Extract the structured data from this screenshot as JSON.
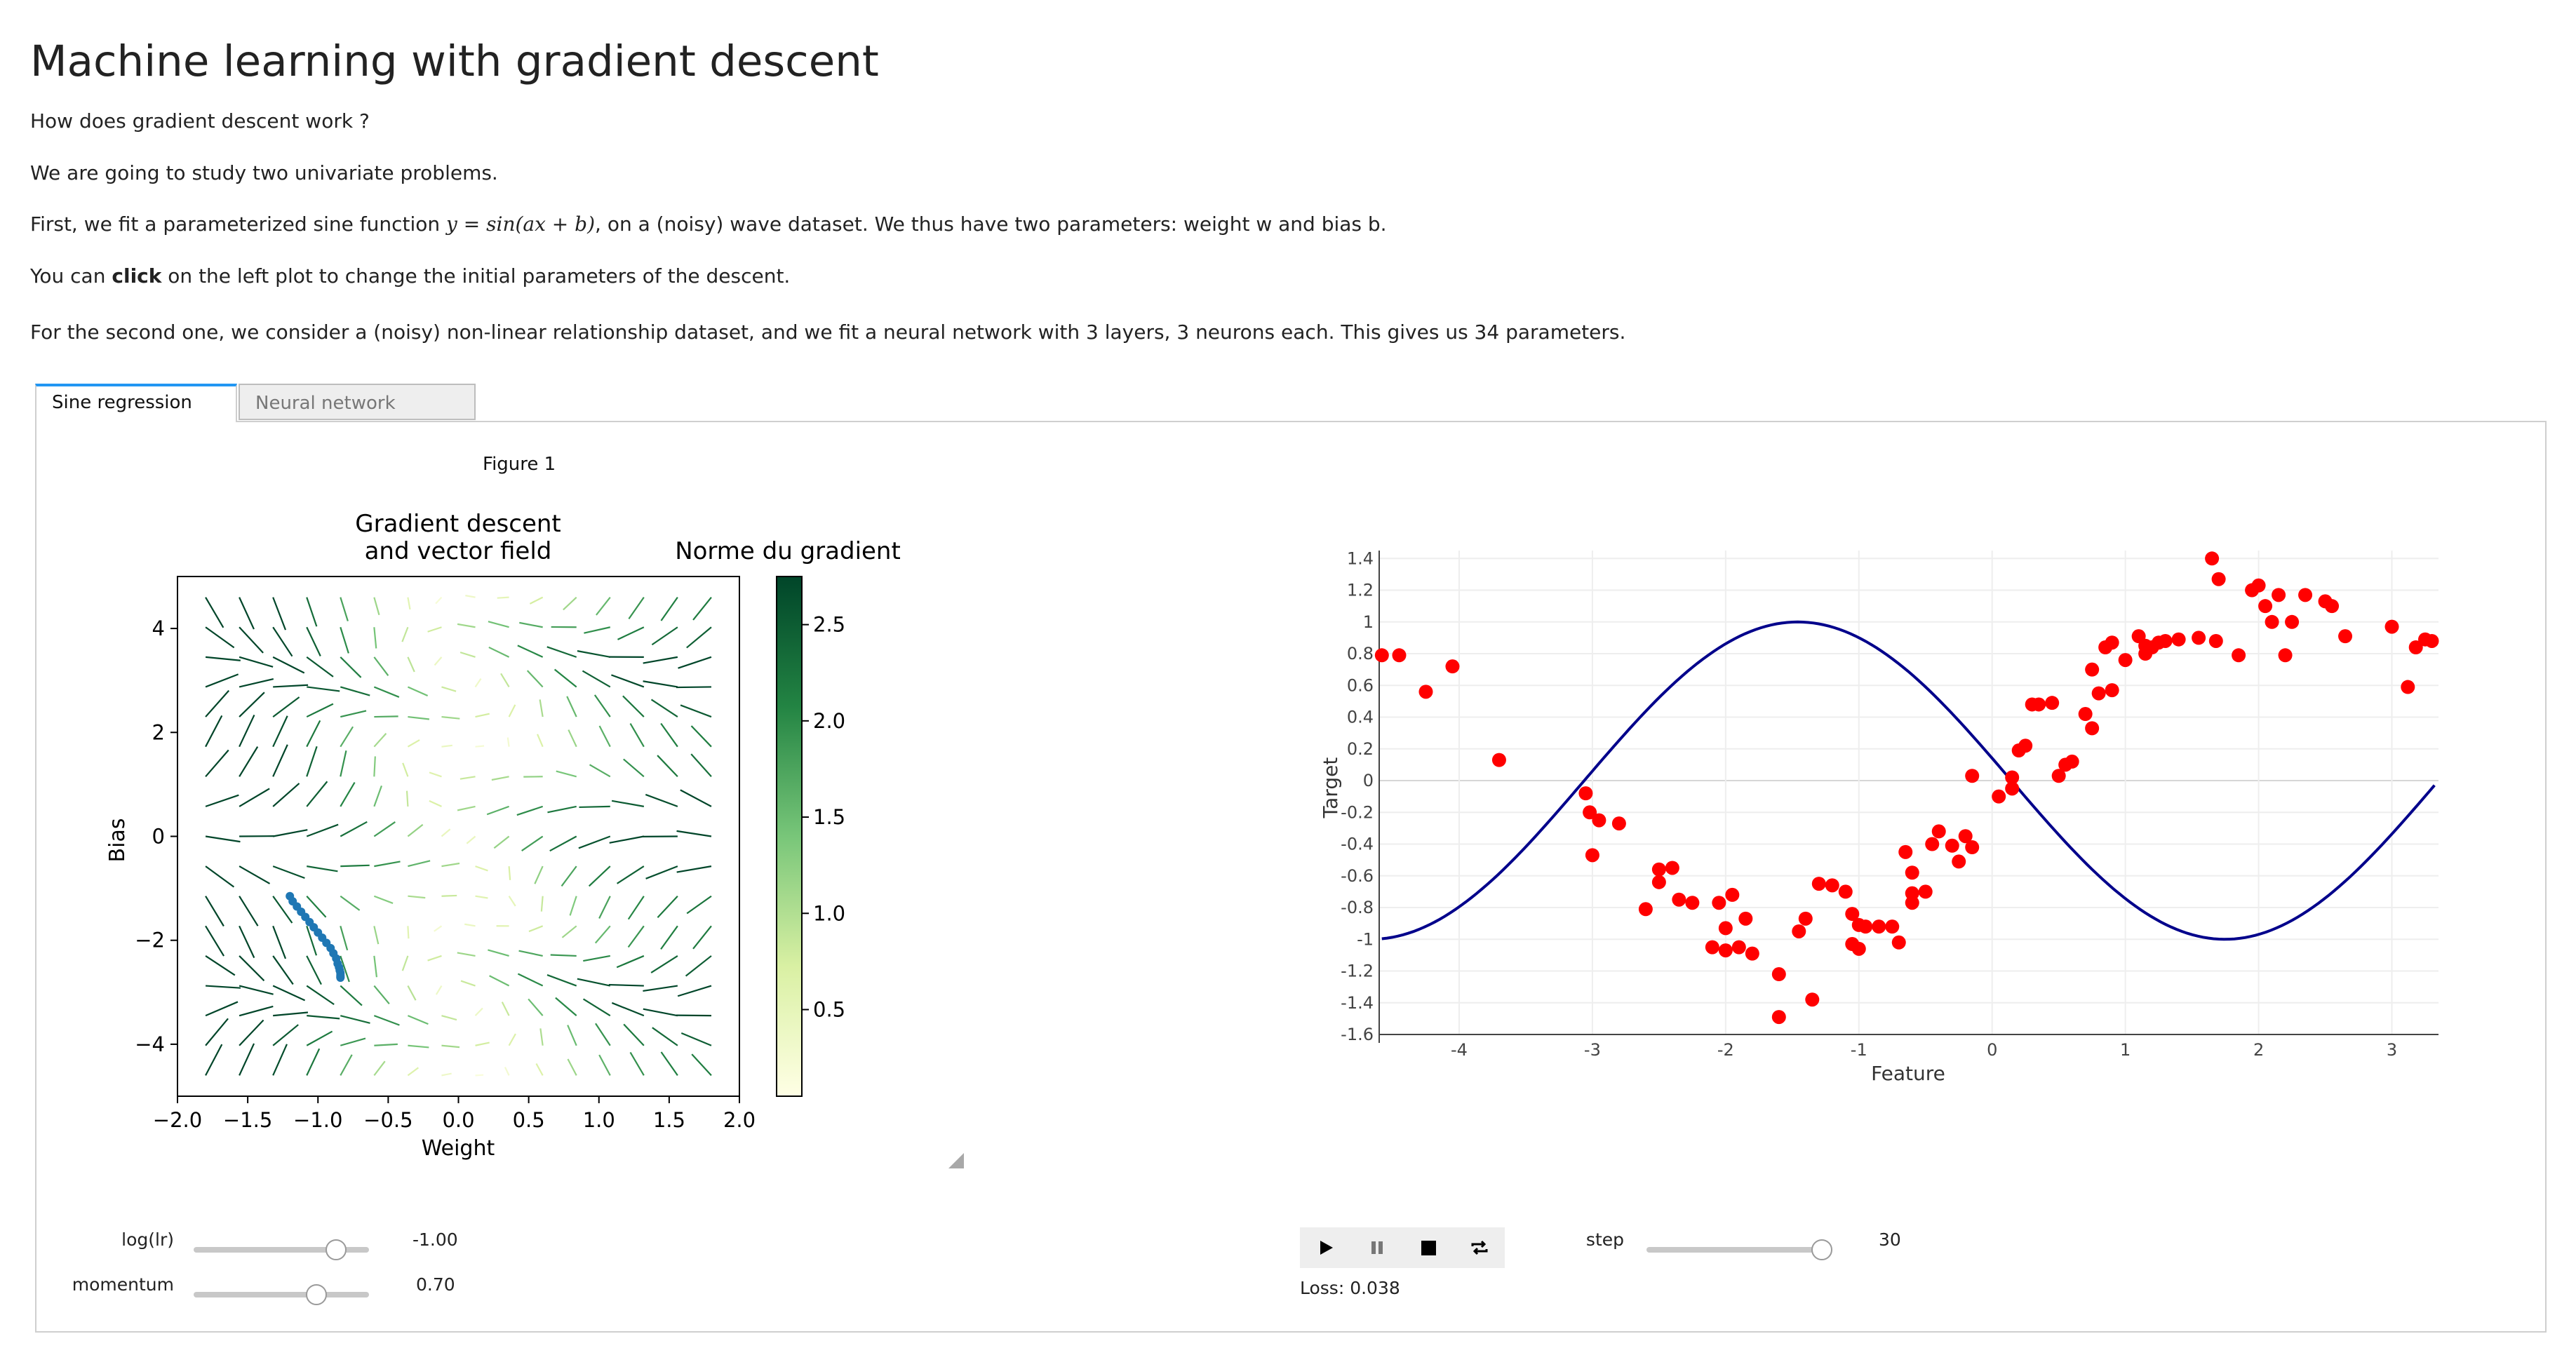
{
  "header": {
    "title": "Machine learning with gradient descent",
    "intro": "How does gradient descent work ?",
    "p2": "We are going to study two univariate problems.",
    "p3_before": "First, we fit a parameterized sine function ",
    "p3_math": "y = sin(ax + b)",
    "p3_after": ", on a (noisy) wave dataset. We thus have two parameters: weight w and bias b.",
    "p4_before": "You can ",
    "p4_bold": "click",
    "p4_after": " on the left plot to change the initial parameters of the descent.",
    "p5": "For the second one, we consider a (noisy) non-linear relationship dataset, and we fit a neural network with 3 layers, 3 neurons each. This gives us 34 parameters."
  },
  "tabs": [
    {
      "label": "Sine regression",
      "active": true
    },
    {
      "label": "Neural network",
      "active": false
    }
  ],
  "figure": {
    "label": "Figure 1",
    "left_title_line1": "Gradient descent",
    "left_title_line2": "and vector field",
    "xlabel": "Weight",
    "ylabel": "Bias",
    "xticks": [
      "−2.0",
      "−1.5",
      "−1.0",
      "−0.5",
      "0.0",
      "0.5",
      "1.0",
      "1.5",
      "2.0"
    ],
    "yticks": [
      "4",
      "2",
      "0",
      "−2",
      "−4"
    ],
    "colorbar_title": "Norme du gradient",
    "colorbar_ticks": [
      "2.5",
      "2.0",
      "1.5",
      "1.0",
      "0.5"
    ]
  },
  "controls": {
    "lr_label": "log(lr)",
    "lr_value": "-1.00",
    "lr_fraction": 0.81,
    "momentum_label": "momentum",
    "momentum_value": "0.70",
    "momentum_fraction": 0.7,
    "step_label": "step",
    "step_value": "30",
    "step_fraction": 1.0,
    "loss_text": "Loss: 0.038",
    "player_buttons": [
      "play-icon",
      "pause-icon",
      "stop-icon",
      "repeat-icon"
    ]
  },
  "colors": {
    "accent_tab": "#2196f3",
    "descent_path": "#1f77b4",
    "scatter": "#ff0000",
    "fit_line": "#00008b"
  },
  "chart_data": [
    {
      "type": "scatter",
      "title": "Gradient descent and vector field",
      "xlabel": "Weight",
      "ylabel": "Bias",
      "xlim": [
        -2.0,
        2.0
      ],
      "ylim": [
        -5.0,
        5.0
      ],
      "descent_path": {
        "x": [
          -1.2,
          -1.18,
          -1.15,
          -1.12,
          -1.09,
          -1.06,
          -1.03,
          -1.0,
          -0.97,
          -0.94,
          -0.91,
          -0.89,
          -0.87,
          -0.86,
          -0.85,
          -0.845,
          -0.84,
          -0.84,
          -0.84,
          -0.84
        ],
        "y": [
          -1.15,
          -1.25,
          -1.35,
          -1.45,
          -1.55,
          -1.65,
          -1.75,
          -1.85,
          -1.95,
          -2.05,
          -2.15,
          -2.25,
          -2.35,
          -2.45,
          -2.52,
          -2.58,
          -2.63,
          -2.67,
          -2.7,
          -2.72
        ]
      },
      "colorbar": {
        "title": "Norme du gradient",
        "min": 0.05,
        "max": 2.75,
        "colormap": "YlGn"
      }
    },
    {
      "type": "scatter",
      "xlabel": "Feature",
      "ylabel": "Target",
      "xlim": [
        -4.6,
        3.35
      ],
      "ylim": [
        -1.6,
        1.45
      ],
      "xticks": [
        "-4",
        "-3",
        "-2",
        "-1",
        "0",
        "1",
        "2",
        "3"
      ],
      "yticks": [
        "1.4",
        "1.2",
        "1",
        "0.8",
        "0.6",
        "0.4",
        "0.2",
        "0",
        "-0.2",
        "-0.4",
        "-0.6",
        "-0.8",
        "-1",
        "-1.2",
        "-1.4",
        "-1.6"
      ],
      "fit": {
        "a": 0.98,
        "b": 3.0
      },
      "points": {
        "x": [
          -4.58,
          -4.45,
          -4.25,
          -4.05,
          -3.7,
          -3.05,
          -3.02,
          -2.95,
          -3.0,
          -2.8,
          -2.6,
          -2.5,
          -2.5,
          -2.4,
          -2.35,
          -2.25,
          -2.1,
          -2.05,
          -2.0,
          -2.0,
          -1.95,
          -1.9,
          -1.85,
          -1.8,
          -1.6,
          -1.6,
          -1.45,
          -1.4,
          -1.35,
          -1.3,
          -1.2,
          -1.1,
          -1.05,
          -1.05,
          -1.0,
          -1.0,
          -0.95,
          -0.85,
          -0.75,
          -0.7,
          -0.65,
          -0.6,
          -0.6,
          -0.6,
          -0.5,
          -0.45,
          -0.4,
          -0.3,
          -0.25,
          -0.2,
          -0.15,
          -0.15,
          0.05,
          0.15,
          0.15,
          0.2,
          0.25,
          0.3,
          0.35,
          0.45,
          0.5,
          0.55,
          0.6,
          0.7,
          0.75,
          0.75,
          0.8,
          0.85,
          0.9,
          0.9,
          1.0,
          1.1,
          1.15,
          1.15,
          1.2,
          1.25,
          1.3,
          1.4,
          1.55,
          1.65,
          1.68,
          1.7,
          1.85,
          1.95,
          2.0,
          2.05,
          2.1,
          2.15,
          2.2,
          2.25,
          2.35,
          2.5,
          2.55,
          2.65,
          3.0,
          3.12,
          3.18,
          3.25,
          3.3
        ],
        "y": [
          0.79,
          0.79,
          0.56,
          0.72,
          0.13,
          -0.08,
          -0.2,
          -0.25,
          -0.47,
          -0.27,
          -0.81,
          -0.56,
          -0.64,
          -0.55,
          -0.75,
          -0.77,
          -1.05,
          -0.77,
          -1.07,
          -0.93,
          -0.72,
          -1.05,
          -0.87,
          -1.09,
          -1.22,
          -1.49,
          -0.95,
          -0.87,
          -1.38,
          -0.65,
          -0.66,
          -0.7,
          -0.84,
          -1.03,
          -0.91,
          -1.06,
          -0.92,
          -0.92,
          -0.92,
          -1.02,
          -0.45,
          -0.58,
          -0.71,
          -0.77,
          -0.7,
          -0.4,
          -0.32,
          -0.41,
          -0.51,
          -0.35,
          -0.42,
          0.03,
          -0.1,
          -0.05,
          0.02,
          0.19,
          0.22,
          0.48,
          0.48,
          0.49,
          0.03,
          0.1,
          0.12,
          0.42,
          0.33,
          0.7,
          0.55,
          0.84,
          0.57,
          0.87,
          0.76,
          0.91,
          0.85,
          0.8,
          0.84,
          0.87,
          0.88,
          0.89,
          0.9,
          1.4,
          0.88,
          1.27,
          0.79,
          1.2,
          1.23,
          1.1,
          1.0,
          1.17,
          0.79,
          1.0,
          1.17,
          1.13,
          1.1,
          0.91,
          0.97,
          0.59,
          0.84,
          0.89,
          0.88
        ]
      }
    }
  ]
}
